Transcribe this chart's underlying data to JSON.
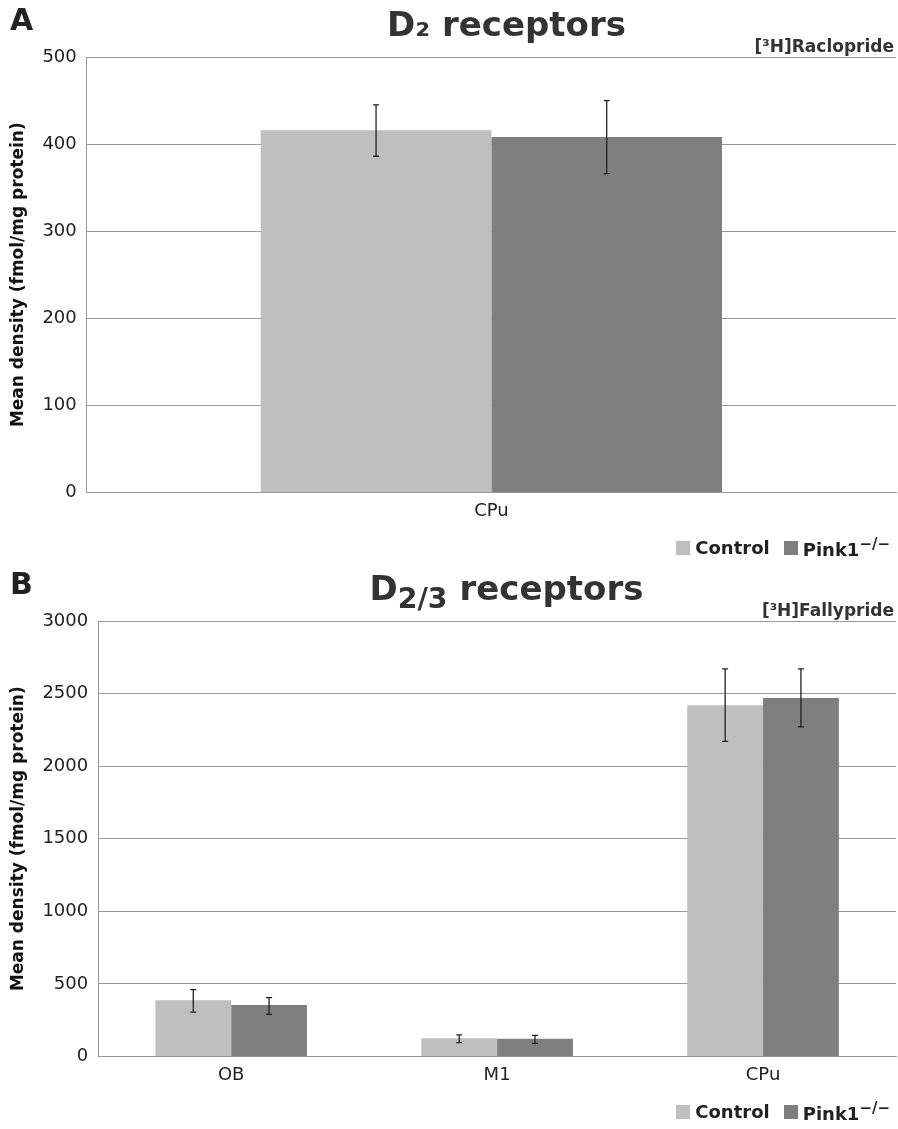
{
  "chart_data": [
    {
      "type": "bar",
      "title": "D₂ receptors",
      "annotations": [
        "A",
        "[³H]Raclopride"
      ],
      "ylabel": "Mean density (fmol/mg protein)",
      "categories": [
        "CPu"
      ],
      "series": [
        {
          "name": "Control",
          "color": "#bfbfbf",
          "values": [
            416
          ],
          "errors": [
            [
              386,
              445
            ]
          ]
        },
        {
          "name": "Pink1$^{−/−}$",
          "color": "#7f7f7f",
          "values": [
            408
          ],
          "errors": [
            [
              366,
              450
            ]
          ]
        }
      ],
      "ylim": [
        0,
        500
      ],
      "yticks": [
        0,
        100,
        200,
        300,
        400,
        500
      ],
      "grid": "y",
      "legend": "bottom right"
    },
    {
      "type": "bar",
      "title": "D$_{2/3}$ receptors",
      "annotations": [
        "B",
        "[³H]Fallypride"
      ],
      "ylabel": "Mean density (fmol/mg protein)",
      "categories": [
        "OB",
        "M1",
        "CPu"
      ],
      "series": [
        {
          "name": "Control",
          "color": "#bfbfbf",
          "values": [
            387,
            125,
            2420
          ],
          "errors": [
            [
              305,
              460
            ],
            [
              95,
              148
            ],
            [
              2170,
              2670
            ]
          ]
        },
        {
          "name": "Pink1$^{−/−}$",
          "color": "#7f7f7f",
          "values": [
            355,
            121,
            2470
          ],
          "errors": [
            [
              290,
              405
            ],
            [
              90,
              145
            ],
            [
              2270,
              2670
            ]
          ]
        }
      ],
      "ylim": [
        0,
        3000
      ],
      "yticks": [
        0,
        500,
        1000,
        1500,
        2000,
        2500,
        3000
      ],
      "grid": "y",
      "legend": "bottom right"
    }
  ]
}
